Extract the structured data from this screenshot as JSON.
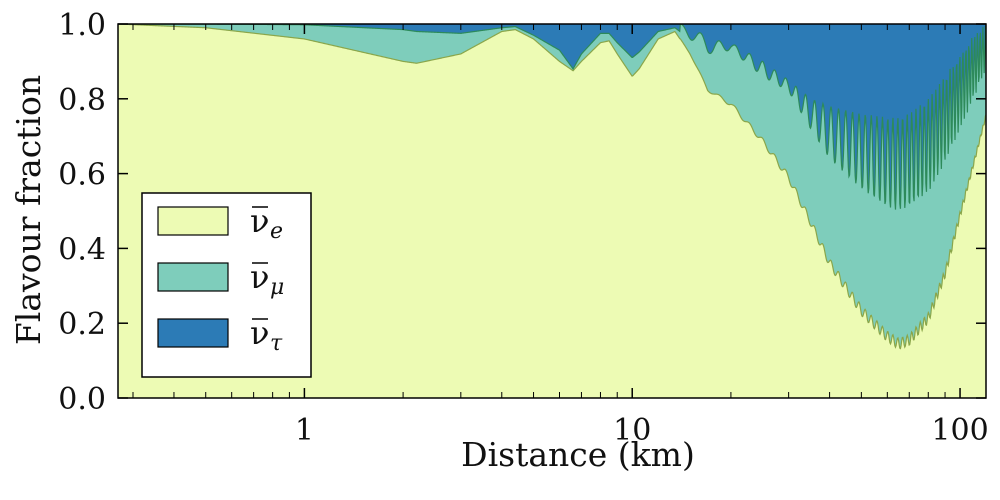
{
  "chart_data": {
    "type": "area",
    "stacked": true,
    "title": "",
    "xlabel": "Distance (km)",
    "ylabel": "Flavour fraction",
    "x_scale": "log",
    "xlim": [
      0.27,
      120
    ],
    "ylim": [
      0.0,
      1.0
    ],
    "x_ticks": [
      {
        "value": 1,
        "label": "1"
      },
      {
        "value": 10,
        "label": "10"
      },
      {
        "value": 100,
        "label": "100"
      }
    ],
    "y_ticks": [
      {
        "value": 0.0,
        "label": "0.0"
      },
      {
        "value": 0.2,
        "label": "0.2"
      },
      {
        "value": 0.4,
        "label": "0.4"
      },
      {
        "value": 0.6,
        "label": "0.6"
      },
      {
        "value": 0.8,
        "label": "0.8"
      },
      {
        "value": 1.0,
        "label": "1.0"
      }
    ],
    "grid": false,
    "legend_position": "lower-left",
    "series": [
      {
        "name": "ν̄e",
        "symbol": "ν",
        "sub": "e",
        "color": "#edfbb4"
      },
      {
        "name": "ν̄μ",
        "symbol": "ν",
        "sub": "μ",
        "color": "#7ecdbb"
      },
      {
        "name": "ν̄τ",
        "symbol": "ν",
        "sub": "τ",
        "color": "#2c7bb6"
      }
    ],
    "boundaries": {
      "x": [
        0.27,
        0.5,
        1,
        2,
        2.2,
        3,
        4,
        4.4,
        5,
        6,
        6.6,
        7,
        8,
        8.5,
        9,
        10,
        10.5,
        12,
        13.5,
        15,
        17,
        20,
        25,
        30,
        35,
        40,
        50,
        60,
        65,
        70,
        80,
        90,
        100,
        110,
        120
      ],
      "electron_fraction": [
        1.0,
        0.99,
        0.96,
        0.9,
        0.895,
        0.92,
        0.98,
        0.985,
        0.96,
        0.9,
        0.875,
        0.9,
        0.95,
        0.955,
        0.92,
        0.86,
        0.88,
        0.96,
        0.98,
        0.92,
        0.82,
        0.78,
        0.68,
        0.58,
        0.46,
        0.35,
        0.22,
        0.15,
        0.13,
        0.14,
        0.2,
        0.32,
        0.48,
        0.62,
        0.75
      ],
      "electron_plus_muon_fraction": [
        1.0,
        1.0,
        0.998,
        0.985,
        0.98,
        0.975,
        0.99,
        0.993,
        0.97,
        0.93,
        0.88,
        0.92,
        0.975,
        0.975,
        0.95,
        0.91,
        0.925,
        0.98,
        0.99,
        0.96,
        0.92,
        0.93,
        0.86,
        0.82,
        0.72,
        0.64,
        0.56,
        0.51,
        0.5,
        0.51,
        0.55,
        0.63,
        0.72,
        0.8,
        0.88
      ],
      "oscillation_envelope_upper": [
        1.0,
        1.0,
        1.0,
        1.0,
        1.0,
        1.0,
        1.0,
        1.0,
        1.0,
        1.0,
        1.0,
        1.0,
        1.0,
        1.0,
        1.0,
        1.0,
        1.0,
        1.0,
        1.0,
        1.0,
        0.96,
        0.95,
        0.9,
        0.85,
        0.8,
        0.78,
        0.76,
        0.75,
        0.75,
        0.76,
        0.8,
        0.86,
        0.92,
        0.97,
        1.0
      ]
    }
  }
}
